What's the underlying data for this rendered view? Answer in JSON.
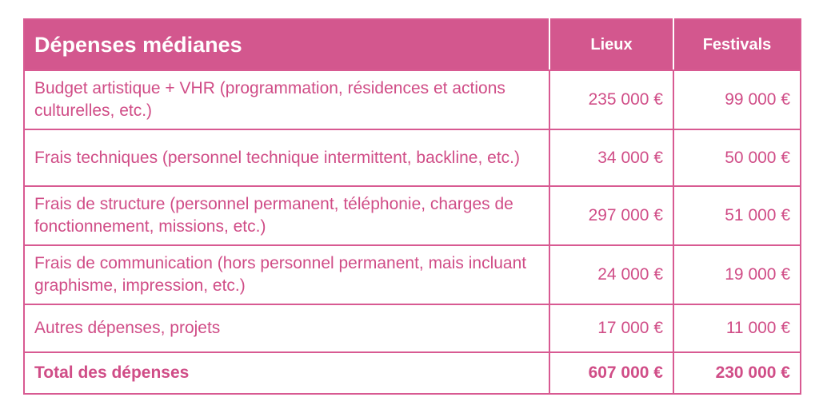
{
  "header": {
    "title": "Dépenses médianes",
    "col_lieux": "Lieux",
    "col_festivals": "Festivals"
  },
  "rows": [
    {
      "label": "Budget artistique + VHR (programmation, résidences et actions culturelles, etc.)",
      "lieux": "235 000 €",
      "festivals": "99 000 €"
    },
    {
      "label": "Frais techniques (personnel technique intermittent, backline, etc.)",
      "lieux": "34 000 €",
      "festivals": "50 000 €"
    },
    {
      "label": "Frais de structure (personnel permanent, téléphonie, charges de fonctionnement, missions, etc.)",
      "lieux": "297 000 €",
      "festivals": "51 000 €"
    },
    {
      "label": "Frais de communication (hors personnel permanent, mais incluant graphisme, impression, etc.)",
      "lieux": "24 000 €",
      "festivals": "19 000 €"
    },
    {
      "label": "Autres dépenses, projets",
      "lieux": "17 000 €",
      "festivals": "11 000 €"
    }
  ],
  "total": {
    "label": "Total des dépenses",
    "lieux": "607 000 €",
    "festivals": "230 000 €"
  },
  "colors": {
    "header_bg": "#d3578e",
    "text": "#d04d87",
    "border": "#d85a92"
  }
}
